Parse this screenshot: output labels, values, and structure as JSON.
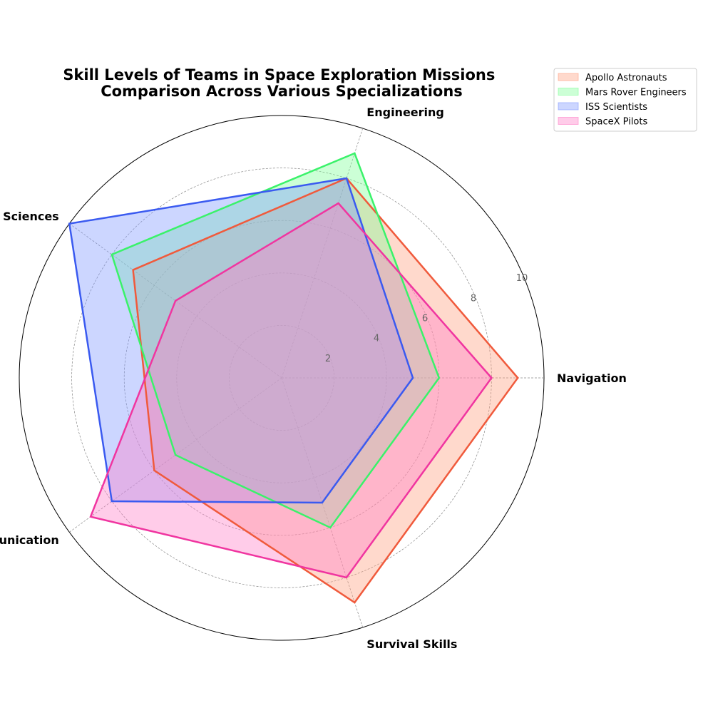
{
  "chart_data": {
    "type": "radar",
    "title": "Skill Levels of Teams in Space Exploration Missions\nComparison Across Various Specializations",
    "categories": [
      "Navigation",
      "Engineering",
      "Life Sciences",
      "Communication",
      "Survival Skills"
    ],
    "rlim": [
      0,
      10
    ],
    "rticks": [
      2,
      4,
      6,
      8,
      10
    ],
    "grid": true,
    "legend_position": "top-right",
    "series": [
      {
        "name": "Apollo Astronauts",
        "values": [
          9,
          8,
          7,
          6,
          9
        ],
        "color": "#f05a3c",
        "fill": "#ff9f80"
      },
      {
        "name": "Mars Rover Engineers",
        "values": [
          6,
          9,
          8,
          5,
          6
        ],
        "color": "#3af26a",
        "fill": "#80ff99"
      },
      {
        "name": "ISS Scientists",
        "values": [
          5,
          8,
          10,
          8,
          5
        ],
        "color": "#3a5af0",
        "fill": "#8099ff"
      },
      {
        "name": "SpaceX Pilots",
        "values": [
          8,
          7,
          5,
          9,
          8
        ],
        "color": "#f035a0",
        "fill": "#ff80c8"
      }
    ]
  }
}
